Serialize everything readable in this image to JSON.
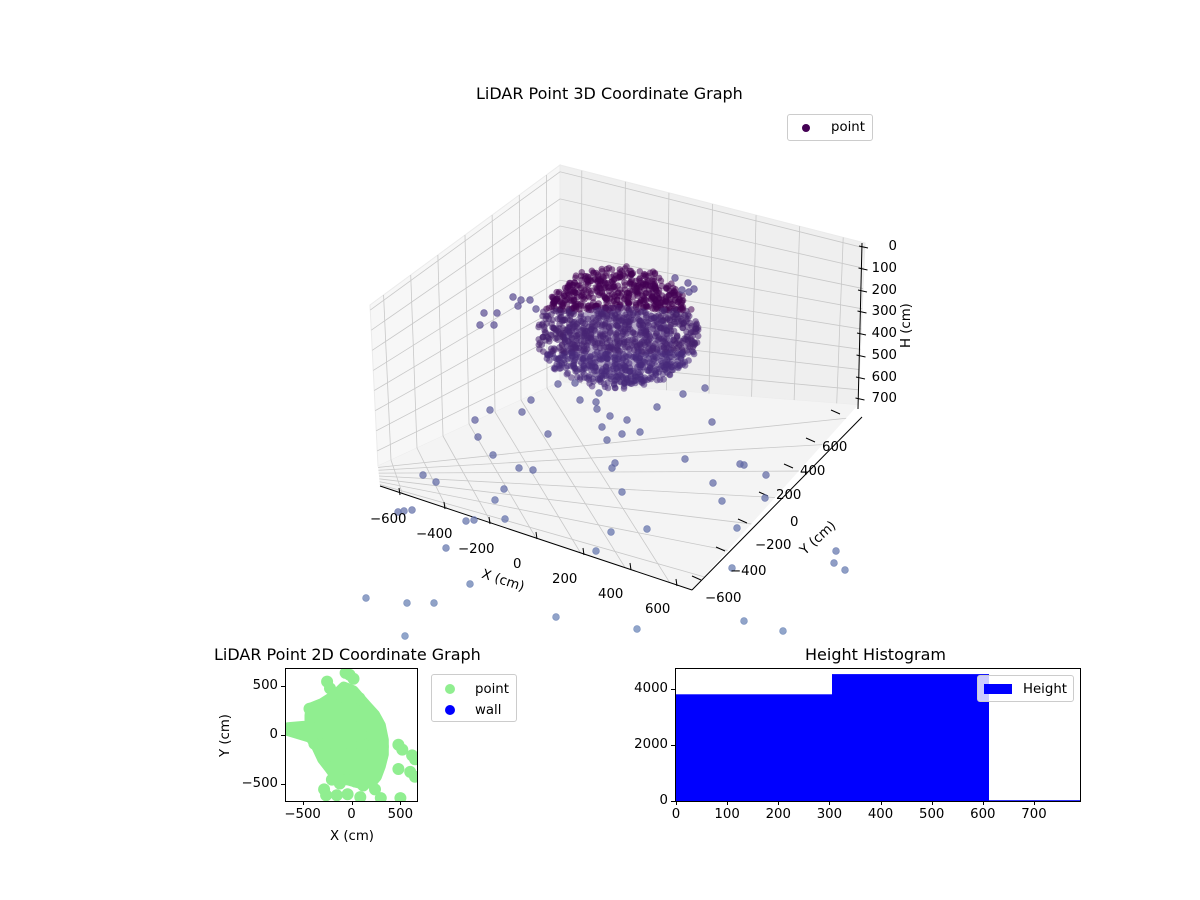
{
  "figure": {
    "background": "#ffffff"
  },
  "chart_data": [
    {
      "type": "scatter3d",
      "title": "LiDAR Point 3D Coordinate Graph",
      "xlabel": "X (cm)",
      "ylabel": "Y (cm)",
      "zlabel": "H (cm)",
      "x_ticks": [
        "−600",
        "−400",
        "−200",
        "0",
        "200",
        "400",
        "600"
      ],
      "y_ticks": [
        "−600",
        "−400",
        "−200",
        "0",
        "200",
        "400",
        "600"
      ],
      "z_ticks": [
        "0",
        "100",
        "200",
        "300",
        "400",
        "500",
        "600",
        "700"
      ],
      "z_inverted": true,
      "xlim": [
        -700,
        700
      ],
      "ylim": [
        -700,
        700
      ],
      "zlim": [
        0,
        780
      ],
      "legend": {
        "entries": [
          {
            "label": "point",
            "color": "#440154"
          }
        ],
        "position": "upper right"
      },
      "colormap": "viridis",
      "marker_alpha": 0.5,
      "description": "Dense dome-shaped cluster of points centered near X≈0, Y≈0 between H≈150 and H≈500, with sparse outliers scattered across the floor and beyond the axes.",
      "outliers_screen": [
        [
          484,
          313
        ],
        [
          497,
          313
        ],
        [
          480,
          325
        ],
        [
          494,
          325
        ],
        [
          513,
          297
        ],
        [
          521,
          300
        ],
        [
          518,
          306
        ],
        [
          530,
          300
        ],
        [
          536,
          309
        ],
        [
          475,
          420
        ],
        [
          490,
          410
        ],
        [
          478,
          437
        ],
        [
          493,
          455
        ],
        [
          519,
          468
        ],
        [
          533,
          470
        ],
        [
          548,
          434
        ],
        [
          522,
          412
        ],
        [
          531,
          400
        ],
        [
          558,
          384
        ],
        [
          575,
          383
        ],
        [
          580,
          400
        ],
        [
          597,
          409
        ],
        [
          610,
          416
        ],
        [
          602,
          427
        ],
        [
          622,
          434
        ],
        [
          640,
          432
        ],
        [
          607,
          440
        ],
        [
          596,
          402
        ],
        [
          599,
          393
        ],
        [
          627,
          420
        ],
        [
          657,
          407
        ],
        [
          683,
          394
        ],
        [
          705,
          388
        ],
        [
          712,
          422
        ],
        [
          685,
          459
        ],
        [
          740,
          464
        ],
        [
          744,
          465
        ],
        [
          713,
          483
        ],
        [
          722,
          501
        ],
        [
          766,
          475
        ],
        [
          765,
          498
        ],
        [
          737,
          528
        ],
        [
          732,
          568
        ],
        [
          596,
          551
        ],
        [
          611,
          532
        ],
        [
          647,
          529
        ],
        [
          622,
          492
        ],
        [
          612,
          468
        ],
        [
          615,
          463
        ],
        [
          504,
          489
        ],
        [
          495,
          500
        ],
        [
          505,
          519
        ],
        [
          474,
          520
        ],
        [
          466,
          521
        ],
        [
          446,
          548
        ],
        [
          423,
          475
        ],
        [
          436,
          482
        ],
        [
          398,
          512
        ],
        [
          404,
          511
        ],
        [
          412,
          510
        ],
        [
          470,
          584
        ],
        [
          366,
          598
        ],
        [
          407,
          603
        ],
        [
          434,
          603
        ],
        [
          556,
          617
        ],
        [
          637,
          629
        ],
        [
          744,
          621
        ],
        [
          783,
          631
        ],
        [
          405,
          636
        ],
        [
          836,
          551
        ],
        [
          834,
          563
        ],
        [
          845,
          570
        ],
        [
          675,
          278
        ],
        [
          682,
          290
        ],
        [
          689,
          292
        ],
        [
          694,
          289
        ],
        [
          688,
          283
        ]
      ]
    },
    {
      "type": "scatter",
      "title": "LiDAR Point 2D Coordinate Graph",
      "xlabel": "X (cm)",
      "ylabel": "Y (cm)",
      "x_ticks": [
        "−500",
        "0",
        "500"
      ],
      "y_ticks": [
        "500",
        "0",
        "−500"
      ],
      "xlim": [
        -670,
        670
      ],
      "ylim": [
        -680,
        680
      ],
      "legend": {
        "entries": [
          {
            "label": "point",
            "color": "#90ee90"
          },
          {
            "label": "wall",
            "color": "#0000ff"
          }
        ],
        "position": "outside upper right"
      },
      "series": [
        {
          "name": "point",
          "color": "#90ee90",
          "description": "Dense blob roughly spanning X −450..330, Y −600..650 with outliers to X≈650"
        },
        {
          "name": "wall",
          "color": "#0000ff",
          "points": []
        }
      ],
      "blob_points": [
        [
          -640,
          50
        ],
        [
          -560,
          50
        ],
        [
          -480,
          60
        ],
        [
          -420,
          80
        ],
        [
          -380,
          -90
        ],
        [
          -430,
          270
        ],
        [
          -360,
          220
        ],
        [
          -250,
          550
        ],
        [
          -220,
          480
        ],
        [
          -60,
          640
        ],
        [
          -20,
          620
        ],
        [
          20,
          580
        ],
        [
          -100,
          420
        ],
        [
          0,
          430
        ],
        [
          80,
          380
        ],
        [
          150,
          270
        ],
        [
          230,
          200
        ],
        [
          260,
          100
        ],
        [
          300,
          0
        ],
        [
          320,
          -120
        ],
        [
          310,
          -230
        ],
        [
          280,
          -310
        ],
        [
          250,
          -380
        ],
        [
          220,
          -460
        ],
        [
          120,
          -520
        ],
        [
          40,
          -480
        ],
        [
          -40,
          -450
        ],
        [
          -120,
          -500
        ],
        [
          -200,
          -460
        ],
        [
          -280,
          -560
        ],
        [
          -260,
          -620
        ],
        [
          -150,
          -620
        ],
        [
          -40,
          -610
        ],
        [
          90,
          -640
        ],
        [
          240,
          -560
        ],
        [
          300,
          -650
        ],
        [
          500,
          -650
        ],
        [
          480,
          -100
        ],
        [
          520,
          -150
        ],
        [
          620,
          -210
        ],
        [
          650,
          -250
        ],
        [
          480,
          -350
        ],
        [
          600,
          -380
        ],
        [
          650,
          -430
        ],
        [
          -300,
          300
        ],
        [
          -250,
          100
        ],
        [
          -200,
          -200
        ],
        [
          -150,
          -300
        ],
        [
          -50,
          -350
        ],
        [
          50,
          -350
        ],
        [
          150,
          -300
        ],
        [
          200,
          -200
        ],
        [
          200,
          0
        ],
        [
          150,
          150
        ],
        [
          50,
          250
        ],
        [
          -50,
          300
        ],
        [
          -150,
          300
        ],
        [
          -250,
          0
        ],
        [
          -300,
          -100
        ],
        [
          -100,
          0
        ],
        [
          0,
          0
        ],
        [
          100,
          0
        ],
        [
          0,
          100
        ],
        [
          0,
          -100
        ],
        [
          -100,
          100
        ],
        [
          100,
          -100
        ],
        [
          100,
          100
        ],
        [
          -100,
          -100
        ]
      ]
    },
    {
      "type": "histogram",
      "title": "Height Histogram",
      "xlabel": "",
      "ylabel": "",
      "x_ticks": [
        "0",
        "100",
        "200",
        "300",
        "400",
        "500",
        "600",
        "700"
      ],
      "y_ticks": [
        "0",
        "2000",
        "4000"
      ],
      "xlim": [
        0,
        790
      ],
      "ylim": [
        0,
        4700
      ],
      "bins": [
        {
          "start": 0,
          "end": 305,
          "count": 3800
        },
        {
          "start": 305,
          "end": 612,
          "count": 4520
        },
        {
          "start": 612,
          "end": 790,
          "count": 30
        }
      ],
      "legend": {
        "entries": [
          {
            "label": "Height",
            "color": "#0000ff"
          }
        ],
        "position": "upper right"
      },
      "color": "#0000ff"
    }
  ]
}
